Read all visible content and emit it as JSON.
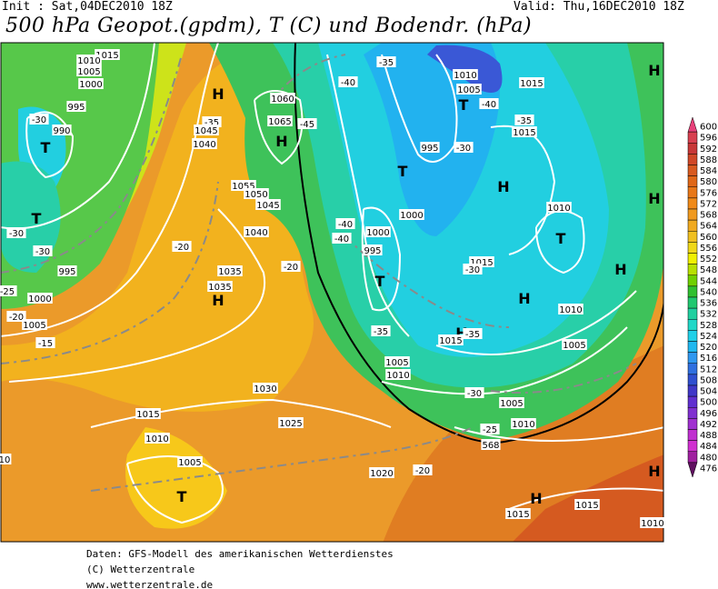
{
  "header": {
    "init": "Init : Sat,04DEC2010 18Z",
    "valid": "Valid: Thu,16DEC2010 18Z",
    "title": "500 hPa Geopot.(gpdm), T (C) und Bodendr. (hPa)"
  },
  "map": {
    "labels": [
      "1015",
      "1010",
      "1005",
      "1000",
      "995",
      "990",
      "-30",
      "T",
      "T",
      "-30",
      "-30",
      "995",
      "-25",
      "1000",
      "-20",
      "1005",
      "-15",
      "H",
      "-35",
      "1045",
      "1040",
      "1060",
      "1065",
      "H",
      "-40",
      "-35",
      "-45",
      "1055",
      "1050",
      "1045",
      "1040",
      "1035",
      "1035",
      "H",
      "-20",
      "-20",
      "1030",
      "1025",
      "1015",
      "1010",
      "1005",
      "T",
      "1020",
      "-20",
      "1010",
      "1005",
      "T",
      "-40",
      "1015",
      "-35",
      "1015",
      "995",
      "-30",
      "T",
      "H",
      "1000",
      "-40",
      "-40",
      "1000",
      "995",
      "T",
      "1015",
      "-30",
      "T",
      "1010",
      "H",
      "H",
      "1010",
      "-35",
      "H",
      "1015",
      "-35",
      "1005",
      "1005",
      "1010",
      "-30",
      "1005",
      "1010",
      "-25",
      "568",
      "H",
      "H",
      "H",
      "H",
      "1015",
      "1015",
      "1010",
      "10"
    ]
  },
  "colorbar": {
    "labels": [
      600,
      596,
      592,
      588,
      584,
      580,
      576,
      572,
      568,
      564,
      560,
      556,
      552,
      548,
      544,
      540,
      536,
      532,
      528,
      524,
      520,
      516,
      512,
      508,
      504,
      500,
      496,
      492,
      488,
      484,
      480,
      476
    ],
    "colors": [
      "#e8407a",
      "#d84050",
      "#c83838",
      "#d04828",
      "#d85a20",
      "#e06818",
      "#e87818",
      "#f08a18",
      "#f09a20",
      "#f0aa20",
      "#f0c020",
      "#f0d818",
      "#f0f000",
      "#b8e000",
      "#70d000",
      "#30c030",
      "#20c870",
      "#20d0a0",
      "#20d8c8",
      "#20d0e8",
      "#20b8f0",
      "#3098f0",
      "#3070e0",
      "#3050d0",
      "#4038c8",
      "#6030d0",
      "#8030d0",
      "#a030d0",
      "#c030d0",
      "#d030d0",
      "#a020a0",
      "#601060"
    ]
  },
  "footer": [
    "Daten: GFS-Modell des amerikanischen Wetterdienstes",
    "(C) Wetterzentrale",
    "www.wetterzentrale.de"
  ]
}
